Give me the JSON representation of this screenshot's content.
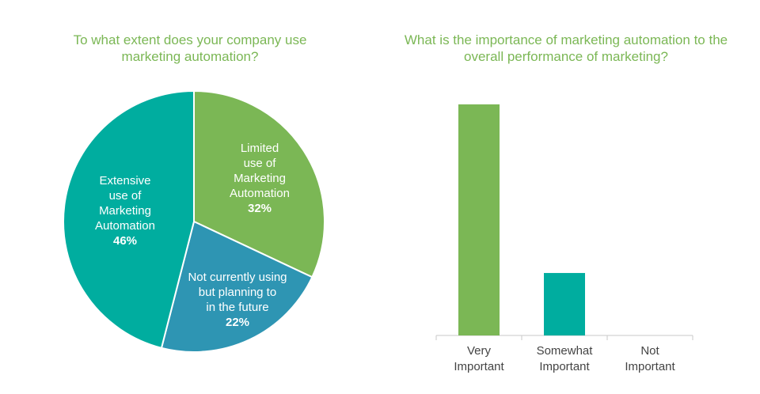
{
  "colors": {
    "title": "#7bb755",
    "green": "#7bb755",
    "teal": "#00ad9f",
    "blue": "#2e95b3",
    "axis": "#c8c8c8",
    "tick_text": "#444444"
  },
  "chart_data": [
    {
      "type": "pie",
      "title": "To what extent does your company use marketing automation?",
      "slices": [
        {
          "label": [
            "Limited",
            "use of",
            "Marketing",
            "Automation"
          ],
          "value": 32,
          "value_label": "32%",
          "color": "#7bb755"
        },
        {
          "label": [
            "Not currently using",
            "but planning to",
            "in the future"
          ],
          "value": 22,
          "value_label": "22%",
          "color": "#2e95b3"
        },
        {
          "label": [
            "Extensive",
            "use of",
            "Marketing",
            "Automation"
          ],
          "value": 46,
          "value_label": "46%",
          "color": "#00ad9f"
        }
      ]
    },
    {
      "type": "bar",
      "title": "What is the importance of marketing automation to the overall performance of marketing?",
      "categories": [
        [
          "Very",
          "Important"
        ],
        [
          "Somewhat",
          "Important"
        ],
        [
          "Not",
          "Important"
        ]
      ],
      "values": [
        74,
        20,
        0
      ],
      "colors": [
        "#7bb755",
        "#00ad9f",
        "#7bb755"
      ],
      "xlabel": "",
      "ylabel": "",
      "ylim": [
        0,
        76
      ],
      "grid": false,
      "legend": "none"
    }
  ]
}
